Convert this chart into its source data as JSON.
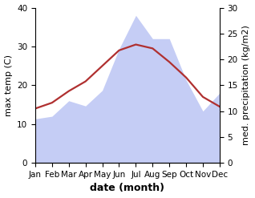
{
  "months": [
    "Jan",
    "Feb",
    "Mar",
    "Apr",
    "May",
    "Jun",
    "Jul",
    "Aug",
    "Sep",
    "Oct",
    "Nov",
    "Dec"
  ],
  "temperature": [
    14.0,
    15.5,
    18.5,
    21.0,
    25.0,
    29.0,
    30.5,
    29.5,
    26.0,
    22.0,
    17.0,
    14.5
  ],
  "precipitation": [
    8.5,
    9.0,
    12.0,
    11.0,
    14.0,
    22.0,
    28.5,
    24.0,
    24.0,
    16.0,
    10.0,
    13.5
  ],
  "precip_fill_color": "#c5cdf5",
  "temp_color": "#b03030",
  "temp_ylim": [
    0,
    40
  ],
  "precip_ylim": [
    0,
    30
  ],
  "temp_yticks": [
    0,
    10,
    20,
    30,
    40
  ],
  "precip_yticks": [
    0,
    5,
    10,
    15,
    20,
    25,
    30
  ],
  "xlabel": "date (month)",
  "ylabel_left": "max temp (C)",
  "ylabel_right": "med. precipitation (kg/m2)",
  "label_fontsize": 8,
  "tick_fontsize": 7.5,
  "xlabel_fontsize": 9,
  "linewidth": 1.6
}
